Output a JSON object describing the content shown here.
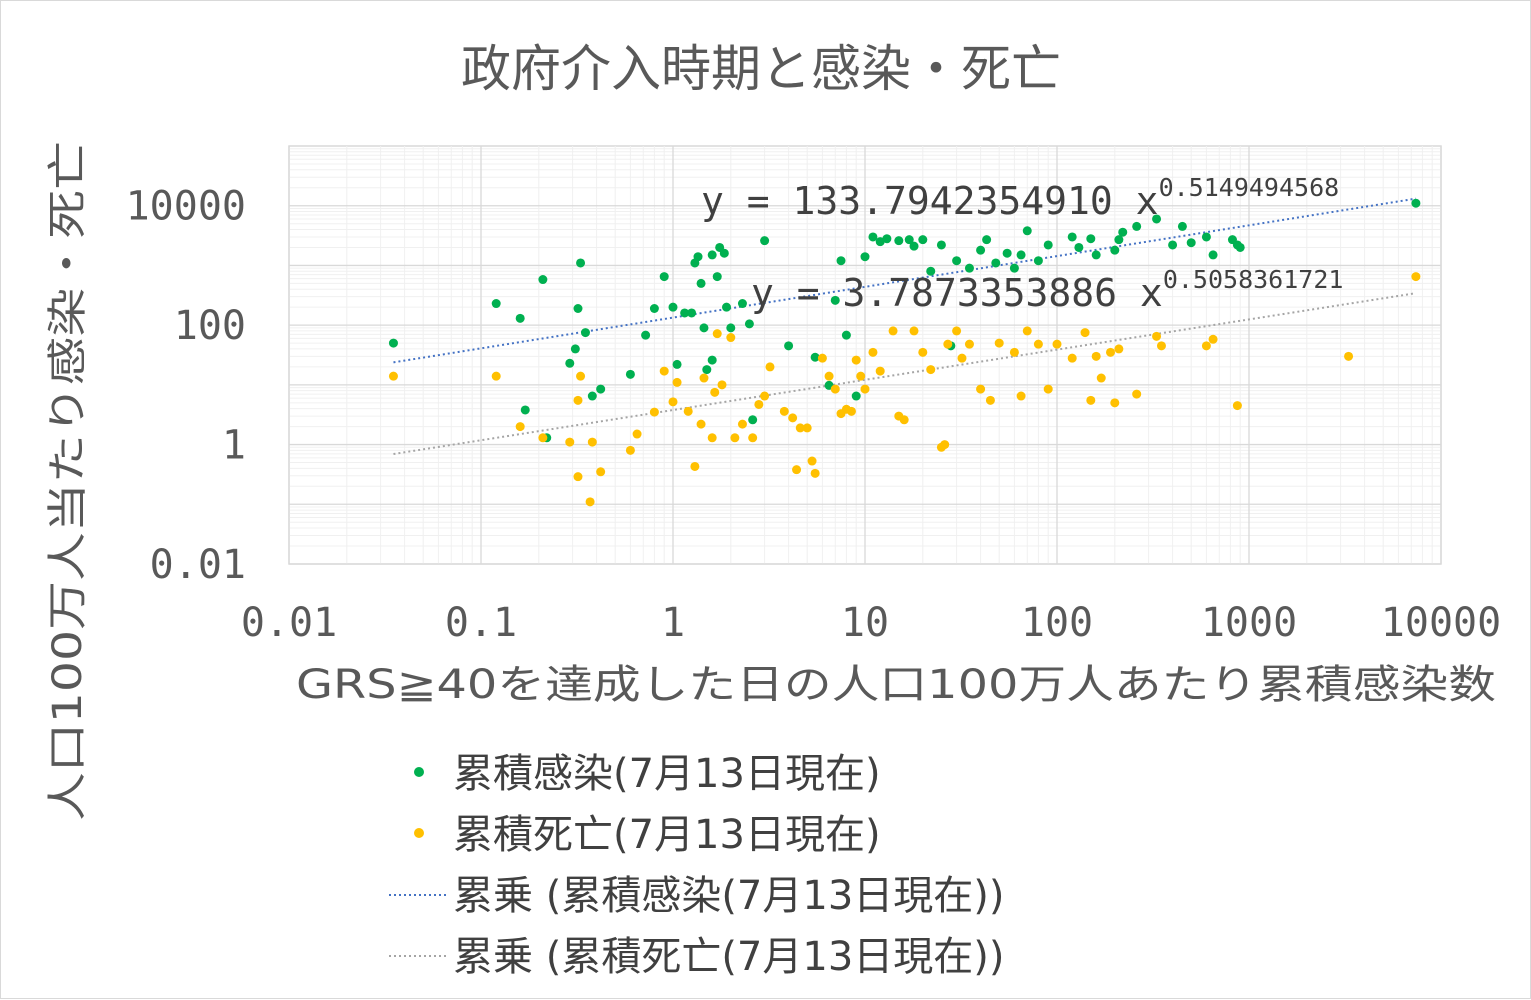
{
  "chart_data": {
    "type": "scatter",
    "title": "政府介入時期と感染・死亡",
    "xlabel": "GRS≧40を達成した日の人口100万人あたり累積感染数",
    "ylabel": "人口100万人当たり感染・死亡",
    "xscale": "log",
    "yscale": "log",
    "xlim": [
      0.01,
      10000
    ],
    "ylim": [
      0.01,
      100000
    ],
    "x_ticks": [
      "0.01",
      "0.1",
      "1",
      "10",
      "100",
      "1000",
      "10000"
    ],
    "y_ticks": [
      "0.01",
      "1",
      "100",
      "10000"
    ],
    "grid": true,
    "legend_position": "bottom",
    "series": [
      {
        "name": "累積感染(7月13日現在)",
        "color": "#00b050",
        "marker": "dot",
        "points": [
          [
            0.035,
            50
          ],
          [
            0.12,
            230
          ],
          [
            0.16,
            130
          ],
          [
            0.17,
            3.8
          ],
          [
            0.21,
            580
          ],
          [
            0.22,
            1.3
          ],
          [
            0.29,
            23
          ],
          [
            0.31,
            40
          ],
          [
            0.32,
            190
          ],
          [
            0.33,
            1100
          ],
          [
            0.35,
            75
          ],
          [
            0.38,
            6.5
          ],
          [
            0.42,
            8.5
          ],
          [
            0.6,
            15
          ],
          [
            0.72,
            68
          ],
          [
            0.8,
            190
          ],
          [
            0.9,
            650
          ],
          [
            1.0,
            200
          ],
          [
            1.05,
            22
          ],
          [
            1.15,
            160
          ],
          [
            1.25,
            160
          ],
          [
            1.3,
            1100
          ],
          [
            1.35,
            1400
          ],
          [
            1.4,
            500
          ],
          [
            1.45,
            90
          ],
          [
            1.5,
            18
          ],
          [
            1.6,
            1500
          ],
          [
            1.6,
            26
          ],
          [
            1.7,
            650
          ],
          [
            1.75,
            2000
          ],
          [
            1.85,
            1600
          ],
          [
            1.9,
            200
          ],
          [
            2.0,
            90
          ],
          [
            2.3,
            230
          ],
          [
            2.5,
            105
          ],
          [
            2.6,
            2.6
          ],
          [
            3.0,
            2600
          ],
          [
            4.0,
            45
          ],
          [
            5.5,
            29
          ],
          [
            6.5,
            9.8
          ],
          [
            7.0,
            260
          ],
          [
            7.5,
            1200
          ],
          [
            8.0,
            68
          ],
          [
            9.0,
            6.5
          ],
          [
            10,
            1400
          ],
          [
            11,
            3000
          ],
          [
            12,
            2500
          ],
          [
            13,
            2800
          ],
          [
            15,
            2600
          ],
          [
            17,
            2700
          ],
          [
            18,
            2100
          ],
          [
            20,
            2700
          ],
          [
            22,
            800
          ],
          [
            25,
            2200
          ],
          [
            28,
            45
          ],
          [
            30,
            1200
          ],
          [
            35,
            900
          ],
          [
            40,
            1800
          ],
          [
            43,
            2700
          ],
          [
            48,
            1100
          ],
          [
            55,
            1600
          ],
          [
            60,
            900
          ],
          [
            65,
            1500
          ],
          [
            70,
            3800
          ],
          [
            80,
            1200
          ],
          [
            90,
            2200
          ],
          [
            120,
            3000
          ],
          [
            130,
            2000
          ],
          [
            150,
            2800
          ],
          [
            160,
            1500
          ],
          [
            200,
            1800
          ],
          [
            210,
            2700
          ],
          [
            220,
            3600
          ],
          [
            260,
            4500
          ],
          [
            330,
            6000
          ],
          [
            400,
            2200
          ],
          [
            450,
            4500
          ],
          [
            500,
            2400
          ],
          [
            600,
            3000
          ],
          [
            650,
            1500
          ],
          [
            820,
            2700
          ],
          [
            870,
            2200
          ],
          [
            900,
            2000
          ],
          [
            7400,
            11000
          ]
        ]
      },
      {
        "name": "累積死亡(7月13日現在)",
        "color": "#ffc000",
        "marker": "dot",
        "points": [
          [
            0.035,
            14
          ],
          [
            0.12,
            14
          ],
          [
            0.16,
            2.0
          ],
          [
            0.21,
            1.3
          ],
          [
            0.29,
            1.1
          ],
          [
            0.32,
            0.29
          ],
          [
            0.32,
            5.5
          ],
          [
            0.33,
            14
          ],
          [
            0.37,
            0.11
          ],
          [
            0.38,
            1.1
          ],
          [
            0.42,
            0.35
          ],
          [
            0.6,
            0.8
          ],
          [
            0.65,
            1.5
          ],
          [
            0.8,
            3.5
          ],
          [
            0.9,
            17
          ],
          [
            1.0,
            5.2
          ],
          [
            1.05,
            11
          ],
          [
            1.2,
            3.6
          ],
          [
            1.3,
            0.43
          ],
          [
            1.4,
            2.2
          ],
          [
            1.45,
            13
          ],
          [
            1.6,
            1.3
          ],
          [
            1.65,
            7.5
          ],
          [
            1.7,
            72
          ],
          [
            1.8,
            10
          ],
          [
            2.0,
            62
          ],
          [
            2.1,
            1.3
          ],
          [
            2.3,
            2.2
          ],
          [
            2.6,
            1.3
          ],
          [
            2.8,
            4.7
          ],
          [
            3.0,
            6.5
          ],
          [
            3.2,
            20
          ],
          [
            3.8,
            3.6
          ],
          [
            4.2,
            2.8
          ],
          [
            4.4,
            0.38
          ],
          [
            4.6,
            1.9
          ],
          [
            5.0,
            1.9
          ],
          [
            5.3,
            0.53
          ],
          [
            5.5,
            0.33
          ],
          [
            6.0,
            28
          ],
          [
            6.5,
            14
          ],
          [
            7.0,
            8.5
          ],
          [
            7.5,
            3.3
          ],
          [
            8.0,
            3.9
          ],
          [
            8.5,
            3.6
          ],
          [
            9.0,
            26
          ],
          [
            9.5,
            14
          ],
          [
            10,
            8.5
          ],
          [
            11,
            35
          ],
          [
            12,
            17
          ],
          [
            14,
            80
          ],
          [
            15,
            3.0
          ],
          [
            16,
            2.6
          ],
          [
            18,
            80
          ],
          [
            20,
            35
          ],
          [
            22,
            18
          ],
          [
            25,
            0.9
          ],
          [
            26,
            1.0
          ],
          [
            27,
            48
          ],
          [
            30,
            80
          ],
          [
            32,
            28
          ],
          [
            35,
            48
          ],
          [
            40,
            8.5
          ],
          [
            45,
            5.5
          ],
          [
            50,
            50
          ],
          [
            60,
            35
          ],
          [
            65,
            6.5
          ],
          [
            70,
            80
          ],
          [
            80,
            48
          ],
          [
            90,
            8.5
          ],
          [
            100,
            48
          ],
          [
            120,
            28
          ],
          [
            140,
            75
          ],
          [
            150,
            5.5
          ],
          [
            160,
            30
          ],
          [
            170,
            13
          ],
          [
            190,
            35
          ],
          [
            200,
            5.0
          ],
          [
            210,
            40
          ],
          [
            260,
            7.0
          ],
          [
            330,
            65
          ],
          [
            350,
            45
          ],
          [
            600,
            45
          ],
          [
            650,
            58
          ],
          [
            870,
            4.5
          ],
          [
            3300,
            30
          ],
          [
            7400,
            650
          ]
        ]
      },
      {
        "name": "累乗 (累積感染(7月13日現在))",
        "color": "#4472c4",
        "type": "trendline",
        "fit": "power",
        "coefficient": 133.794235491,
        "exponent": 0.5149494568
      },
      {
        "name": "累乗 (累積死亡(7月13日現在))",
        "color": "#a5a5a5",
        "type": "trendline",
        "fit": "power",
        "coefficient": 3.7873353886,
        "exponent": 0.5058361721
      }
    ],
    "annotations": [
      {
        "prefix": "y = 133.7942354910 x",
        "exponent": "0.5149494568"
      },
      {
        "prefix": "y = 3.7873353886 x",
        "exponent": "0.5058361721"
      }
    ]
  }
}
